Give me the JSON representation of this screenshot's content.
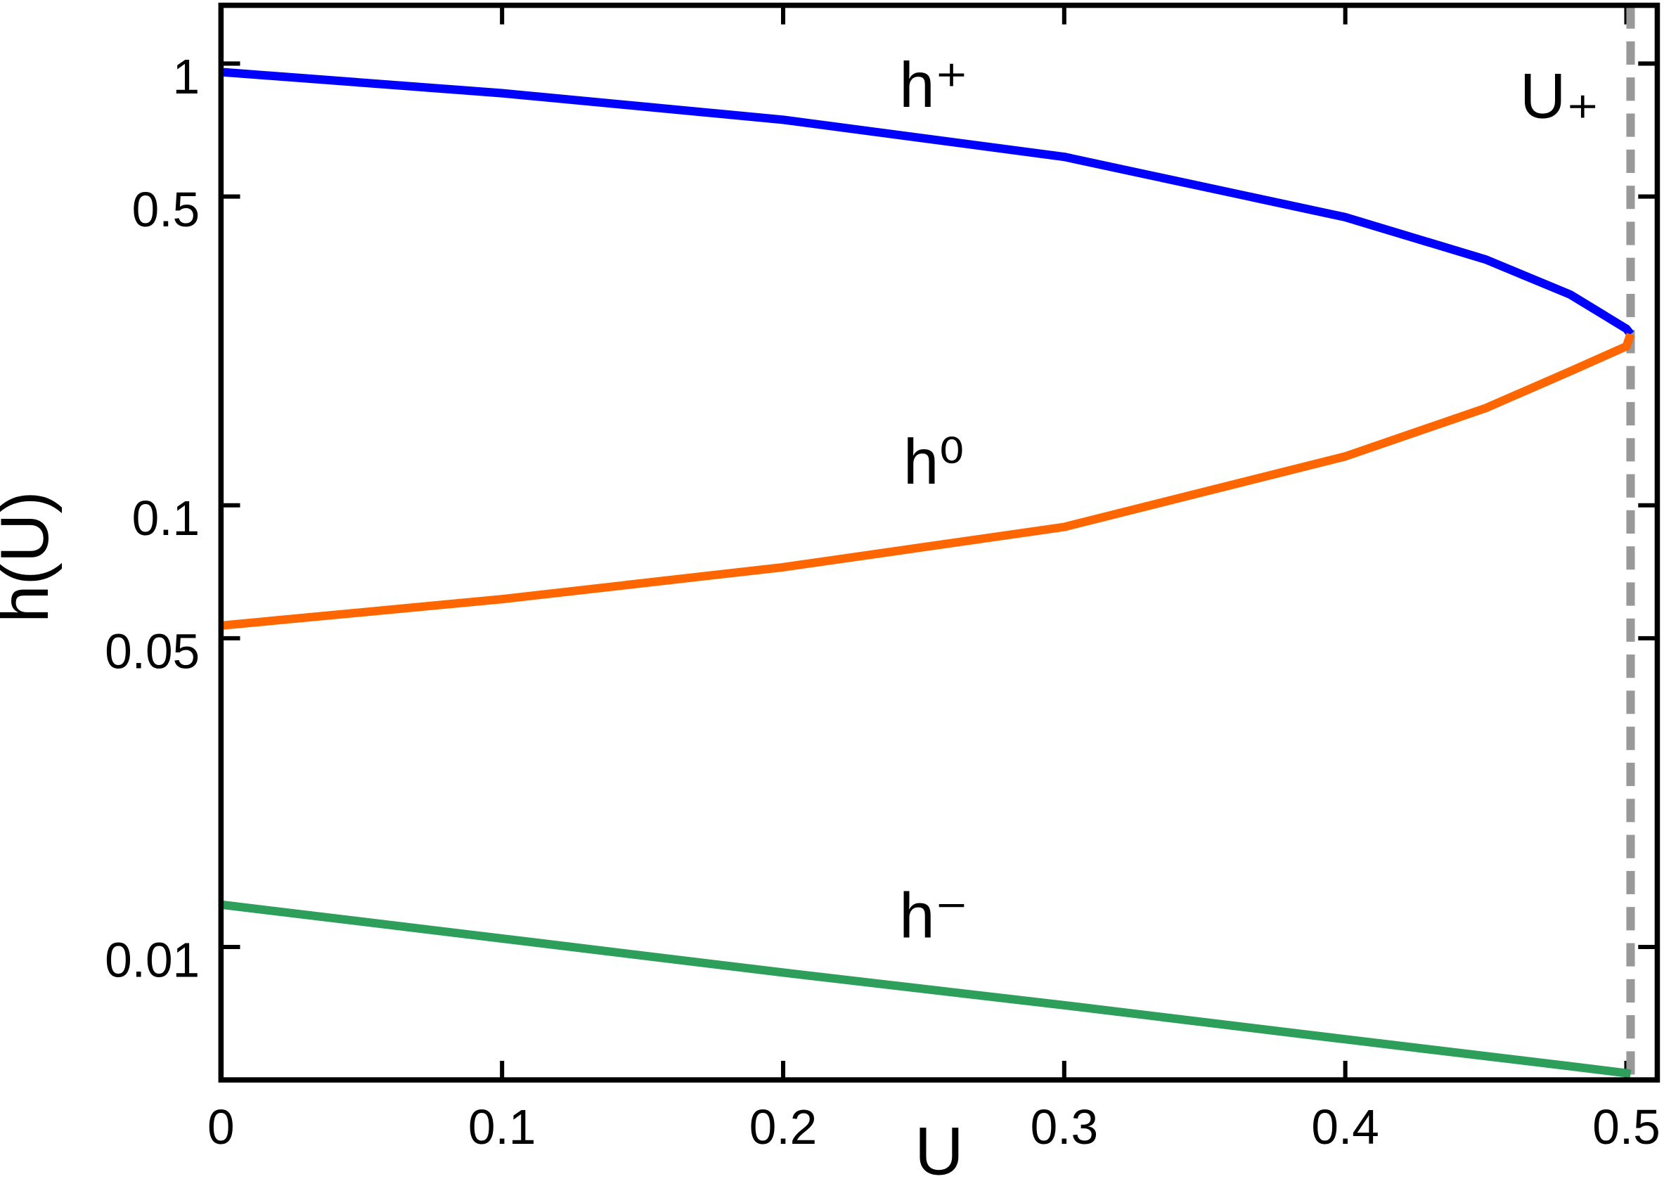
{
  "chart_data": {
    "type": "line",
    "xlabel": "U",
    "ylabel": "h(U)",
    "log_y": true,
    "x": [
      0,
      0.1,
      0.2,
      0.3,
      0.4,
      0.45,
      0.48,
      0.5,
      0.5015
    ],
    "series": [
      {
        "name": "h⁺",
        "color": "#0000ff",
        "values": [
          0.957,
          0.857,
          0.746,
          0.615,
          0.449,
          0.36,
          0.3,
          0.251,
          0.244
        ]
      },
      {
        "name": "h⁰",
        "color": "#ff6600",
        "values": [
          0.0534,
          0.0613,
          0.0724,
          0.0893,
          0.129,
          0.166,
          0.201,
          0.229,
          0.244
        ]
      },
      {
        "name": "h⁻",
        "color": "#2e9e5b",
        "values": [
          0.01247,
          0.01045,
          0.00875,
          0.00738,
          0.00618,
          0.00566,
          0.00537,
          0.00518,
          0.00516
        ]
      }
    ],
    "vline": {
      "x": 0.5015,
      "label": "U₊",
      "color": "#999999"
    },
    "xlim": [
      0,
      0.511
    ],
    "xticks": [
      0,
      0.1,
      0.2,
      0.3,
      0.4,
      0.5
    ],
    "ylim": [
      0.005,
      1.355
    ],
    "yticks": [
      0.01,
      0.05,
      0.1,
      0.5,
      1
    ]
  }
}
